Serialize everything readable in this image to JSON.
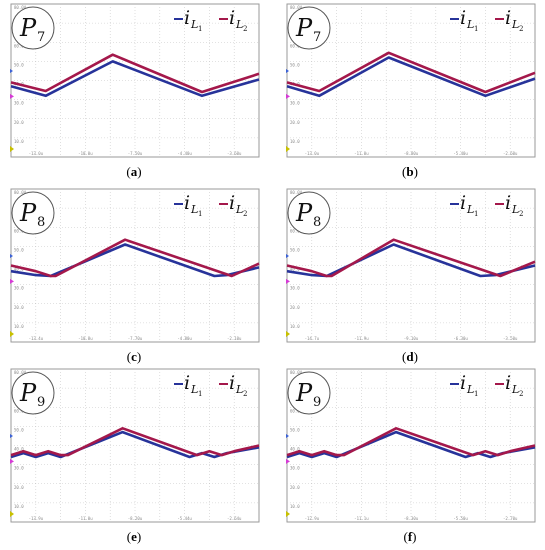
{
  "colors": {
    "series1": "#27339a",
    "series2": "#a4184b",
    "grid": "#b8b8b8",
    "marker_yellow": "#c8c000",
    "marker_magenta": "#d63ad6",
    "marker_blue": "#3a60d6"
  },
  "y_ticks": [
    "80.0V",
    "70.0",
    "60.0",
    "50.0",
    "40.0",
    "30.0",
    "20.0",
    "10.0"
  ],
  "legend": {
    "symbol": "i",
    "sub": "L",
    "s1_index": "1",
    "s2_index": "2"
  },
  "chart_data": [
    {
      "type": "line",
      "caption": "(a)",
      "label_letter": "P",
      "label_index": "7",
      "x_tick_labels": [
        "-13.0u",
        "-10.0u",
        "-7.50u",
        "-4.40u",
        "-3.60u"
      ],
      "ylim": [
        0,
        80
      ],
      "xlim": [
        0,
        10
      ],
      "grid": true,
      "legend_position": "top-right",
      "series": [
        {
          "x": [
            0,
            1.4,
            4.1,
            7.7,
            10
          ],
          "y": [
            37,
            32,
            50,
            32,
            40.5
          ]
        },
        {
          "x": [
            0,
            1.4,
            4.1,
            7.7,
            10
          ],
          "y": [
            39,
            34.5,
            53.5,
            34,
            43.5
          ]
        }
      ]
    },
    {
      "type": "line",
      "caption": "(b)",
      "label_letter": "P",
      "label_index": "7",
      "x_tick_labels": [
        "-13.0u",
        "-11.0u",
        "-8.80u",
        "-5.40u",
        "-2.60u"
      ],
      "ylim": [
        0,
        80
      ],
      "xlim": [
        0,
        10
      ],
      "grid": true,
      "legend_position": "top-right",
      "series": [
        {
          "x": [
            0,
            1.3,
            4.1,
            8.0,
            10
          ],
          "y": [
            37,
            32,
            52,
            32,
            41
          ]
        },
        {
          "x": [
            0,
            1.3,
            4.1,
            8.0,
            10
          ],
          "y": [
            39,
            34.5,
            54.5,
            34,
            44
          ]
        }
      ]
    },
    {
      "type": "line",
      "caption": "(c)",
      "label_letter": "P",
      "label_index": "8",
      "x_tick_labels": [
        "-13.4u",
        "-10.8u",
        "-7.70u",
        "-4.80u",
        "-2.10u"
      ],
      "ylim": [
        0,
        80
      ],
      "xlim": [
        0,
        10
      ],
      "grid": true,
      "legend_position": "top-right",
      "series": [
        {
          "x": [
            0,
            1.0,
            1.6,
            4.6,
            8.2,
            8.7,
            10
          ],
          "y": [
            37,
            35,
            34.5,
            51,
            34.5,
            35,
            39
          ]
        },
        {
          "x": [
            0,
            1.0,
            1.6,
            1.8,
            4.6,
            8.9,
            10
          ],
          "y": [
            40,
            37,
            34.5,
            34.5,
            53.5,
            34.5,
            41
          ]
        }
      ]
    },
    {
      "type": "line",
      "caption": "(d)",
      "label_letter": "P",
      "label_index": "8",
      "x_tick_labels": [
        "-14.7u",
        "-11.9u",
        "-9.10u",
        "-6.30u",
        "-3.50u"
      ],
      "ylim": [
        0,
        80
      ],
      "xlim": [
        0,
        10
      ],
      "grid": true,
      "legend_position": "top-right",
      "series": [
        {
          "x": [
            0,
            1.0,
            1.6,
            4.3,
            7.8,
            8.4,
            10
          ],
          "y": [
            37,
            35,
            34.5,
            51,
            34.5,
            35,
            40
          ]
        },
        {
          "x": [
            0,
            1.0,
            1.6,
            1.8,
            4.3,
            8.6,
            10
          ],
          "y": [
            40,
            37,
            34.5,
            34.5,
            53.5,
            34.5,
            42
          ]
        }
      ]
    },
    {
      "type": "line",
      "caption": "(e)",
      "label_letter": "P",
      "label_index": "9",
      "x_tick_labels": [
        "-13.9u",
        "-11.0u",
        "-8.20u",
        "-5.44u",
        "-2.64u"
      ],
      "ylim": [
        0,
        80
      ],
      "xlim": [
        0,
        10
      ],
      "grid": true,
      "legend_position": "top-right",
      "series": [
        {
          "x": [
            0,
            0.5,
            1.0,
            1.5,
            2.0,
            4.5,
            7.2,
            7.7,
            8.2,
            8.7,
            10
          ],
          "y": [
            34,
            36,
            34,
            36,
            34,
            47,
            34,
            36,
            34,
            36,
            39
          ]
        },
        {
          "x": [
            0,
            0.5,
            1.0,
            1.5,
            2.0,
            2.3,
            4.5,
            7.5,
            8.0,
            8.5,
            9.0,
            10
          ],
          "y": [
            35,
            37,
            35,
            37,
            35,
            35,
            49,
            35,
            37,
            35,
            37,
            40
          ]
        }
      ]
    },
    {
      "type": "line",
      "caption": "(f)",
      "label_letter": "P",
      "label_index": "9",
      "x_tick_labels": [
        "-12.9u",
        "-11.1u",
        "-8.30u",
        "-5.50u",
        "-2.70u"
      ],
      "ylim": [
        0,
        80
      ],
      "xlim": [
        0,
        10
      ],
      "grid": true,
      "legend_position": "top-right",
      "series": [
        {
          "x": [
            0,
            0.5,
            1.0,
            1.5,
            2.0,
            4.4,
            7.2,
            7.7,
            8.2,
            8.7,
            10
          ],
          "y": [
            34,
            36,
            34,
            36,
            34,
            47,
            34,
            36,
            34,
            36,
            39
          ]
        },
        {
          "x": [
            0,
            0.5,
            1.0,
            1.5,
            2.0,
            2.3,
            4.4,
            7.5,
            8.0,
            8.5,
            9.0,
            10
          ],
          "y": [
            35,
            37,
            35,
            37,
            35,
            35,
            49,
            35,
            37,
            35,
            37,
            40
          ]
        }
      ]
    }
  ]
}
